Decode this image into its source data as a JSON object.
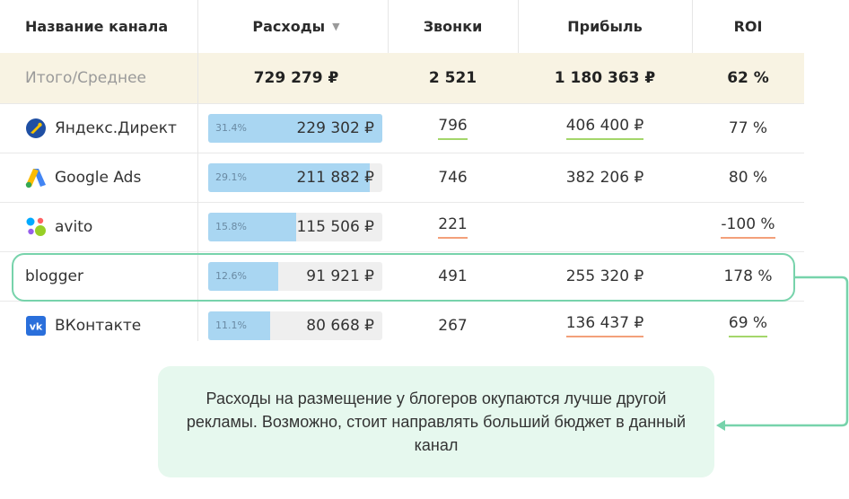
{
  "header": {
    "col_name": "Название канала",
    "col_expenses": "Расходы",
    "col_calls": "Звонки",
    "col_profit": "Прибыль",
    "col_roi": "ROI"
  },
  "totals": {
    "label": "Итого/Среднее",
    "expenses": "729 279 ₽",
    "calls": "2 521",
    "profit": "1 180 363 ₽",
    "roi": "62 %"
  },
  "rows": [
    {
      "name": "Яндекс.Директ",
      "icon": "yandex-direct-logo-icon",
      "share_pct": "31.4%",
      "share": 0.314,
      "expenses": "229 302 ₽",
      "calls": "796",
      "profit": "406 400 ₽",
      "roi": "77 %"
    },
    {
      "name": "Google Ads",
      "icon": "google-ads-logo-icon",
      "share_pct": "29.1%",
      "share": 0.291,
      "expenses": "211 882 ₽",
      "calls": "746",
      "profit": "382 206 ₽",
      "roi": "80 %"
    },
    {
      "name": "avito",
      "icon": "avito-logo-icon",
      "share_pct": "15.8%",
      "share": 0.158,
      "expenses": "115 506 ₽",
      "calls": "221",
      "profit": "",
      "roi": "-100 %"
    },
    {
      "name": "blogger",
      "icon": "",
      "share_pct": "12.6%",
      "share": 0.126,
      "expenses": "91 921 ₽",
      "calls": "491",
      "profit": "255 320 ₽",
      "roi": "178 %"
    },
    {
      "name": "ВКонтакте",
      "icon": "vk-logo-icon",
      "share_pct": "11.1%",
      "share": 0.111,
      "expenses": "80 668 ₽",
      "calls": "267",
      "profit": "136 437 ₽",
      "roi": "69 %"
    }
  ],
  "callout": {
    "text": "Расходы на размещение у блогеров окупаются лучше другой рекламы. Возможно, стоит направлять больший бюджет в данный канал"
  },
  "colors": {
    "totals_bg": "#f8f3e3",
    "bar_fill": "#a9d6f2",
    "bar_track": "#efefef",
    "underline_good": "#a4d66a",
    "underline_bad": "#f3a07a",
    "highlight": "#77d3ab",
    "callout_bg": "#e6f8ee"
  }
}
